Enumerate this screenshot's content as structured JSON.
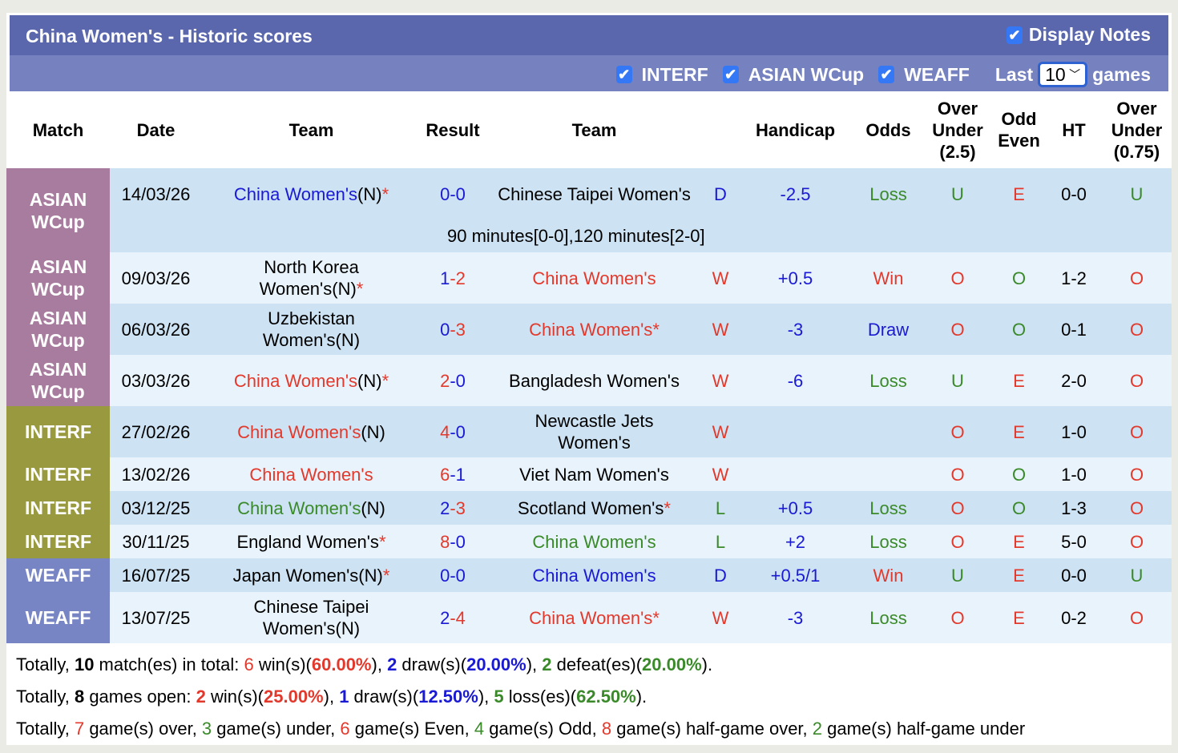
{
  "title": "China Women's - Historic scores",
  "display_notes": {
    "label": "Display Notes",
    "checked": true
  },
  "filters": [
    {
      "label": "INTERF",
      "checked": true
    },
    {
      "label": "ASIAN WCup",
      "checked": true
    },
    {
      "label": "WEAFF",
      "checked": true
    }
  ],
  "last": {
    "prefix": "Last",
    "value": "10",
    "suffix": "games"
  },
  "colors": {
    "red": "#e3392c",
    "blue": "#1a1ad4",
    "green": "#3a8a2a",
    "ASIAN WCup": "#a87c9e",
    "INTERF": "#999a40",
    "WEAFF": "#7885c4",
    "header": "#5a67ad"
  },
  "columns": [
    "Match",
    "Date",
    "Team",
    "Result",
    "Team",
    "",
    "Handicap",
    "Odds",
    "Over Under (2.5)",
    "Odd Even",
    "HT",
    "Over Under (0.75)"
  ],
  "rows": [
    {
      "match": "ASIAN WCup",
      "date": "14/03/26",
      "home": {
        "name": "China Women's",
        "color": "b",
        "suffix": "(N)",
        "star": true
      },
      "score": [
        [
          "0",
          "b"
        ],
        [
          "0",
          "b"
        ]
      ],
      "away": {
        "name": "Chinese Taipei Women's",
        "color": "k",
        "suffix": "",
        "star": false
      },
      "wdl": [
        "D",
        "b"
      ],
      "handicap": [
        "-2.5",
        "b"
      ],
      "odds": [
        "Loss",
        "g"
      ],
      "ou": [
        "U",
        "g"
      ],
      "oe": [
        "E",
        "r"
      ],
      "ht": "0-0",
      "ou075": [
        "U",
        "g"
      ],
      "note": "90 minutes[0-0],120 minutes[2-0]"
    },
    {
      "match": "ASIAN WCup",
      "date": "09/03/26",
      "home": {
        "name": "North Korea Women's",
        "color": "k",
        "suffix": "(N)",
        "star": true
      },
      "score": [
        [
          "1",
          "b"
        ],
        [
          "2",
          "r"
        ]
      ],
      "away": {
        "name": "China Women's",
        "color": "r",
        "suffix": "",
        "star": false
      },
      "wdl": [
        "W",
        "r"
      ],
      "handicap": [
        "+0.5",
        "b"
      ],
      "odds": [
        "Win",
        "r"
      ],
      "ou": [
        "O",
        "r"
      ],
      "oe": [
        "O",
        "g"
      ],
      "ht": "1-2",
      "ou075": [
        "O",
        "r"
      ]
    },
    {
      "match": "ASIAN WCup",
      "date": "06/03/26",
      "home": {
        "name": "Uzbekistan Women's",
        "color": "k",
        "suffix": "(N)",
        "star": false
      },
      "score": [
        [
          "0",
          "b"
        ],
        [
          "3",
          "r"
        ]
      ],
      "away": {
        "name": "China Women's",
        "color": "r",
        "suffix": "",
        "star": true
      },
      "wdl": [
        "W",
        "r"
      ],
      "handicap": [
        "-3",
        "b"
      ],
      "odds": [
        "Draw",
        "b"
      ],
      "ou": [
        "O",
        "r"
      ],
      "oe": [
        "O",
        "g"
      ],
      "ht": "0-1",
      "ou075": [
        "O",
        "r"
      ]
    },
    {
      "match": "ASIAN WCup",
      "date": "03/03/26",
      "home": {
        "name": "China Women's",
        "color": "r",
        "suffix": "(N)",
        "star": true
      },
      "score": [
        [
          "2",
          "r"
        ],
        [
          "0",
          "b"
        ]
      ],
      "away": {
        "name": "Bangladesh Women's",
        "color": "k",
        "suffix": "",
        "star": false
      },
      "wdl": [
        "W",
        "r"
      ],
      "handicap": [
        "-6",
        "b"
      ],
      "odds": [
        "Loss",
        "g"
      ],
      "ou": [
        "U",
        "g"
      ],
      "oe": [
        "E",
        "r"
      ],
      "ht": "2-0",
      "ou075": [
        "O",
        "r"
      ]
    },
    {
      "match": "INTERF",
      "date": "27/02/26",
      "home": {
        "name": "China Women's",
        "color": "r",
        "suffix": "(N)",
        "star": false
      },
      "score": [
        [
          "4",
          "r"
        ],
        [
          "0",
          "b"
        ]
      ],
      "away": {
        "name": "Newcastle Jets Women's",
        "color": "k",
        "suffix": "",
        "star": false
      },
      "wdl": [
        "W",
        "r"
      ],
      "handicap": [
        "",
        "b"
      ],
      "odds": [
        "",
        "g"
      ],
      "ou": [
        "O",
        "r"
      ],
      "oe": [
        "E",
        "r"
      ],
      "ht": "1-0",
      "ou075": [
        "O",
        "r"
      ]
    },
    {
      "match": "INTERF",
      "date": "13/02/26",
      "home": {
        "name": "China Women's",
        "color": "r",
        "suffix": "",
        "star": false
      },
      "score": [
        [
          "6",
          "r"
        ],
        [
          "1",
          "b"
        ]
      ],
      "away": {
        "name": "Viet Nam Women's",
        "color": "k",
        "suffix": "",
        "star": false
      },
      "wdl": [
        "W",
        "r"
      ],
      "handicap": [
        "",
        "b"
      ],
      "odds": [
        "",
        "g"
      ],
      "ou": [
        "O",
        "r"
      ],
      "oe": [
        "O",
        "g"
      ],
      "ht": "1-0",
      "ou075": [
        "O",
        "r"
      ]
    },
    {
      "match": "INTERF",
      "date": "03/12/25",
      "home": {
        "name": "China Women's",
        "color": "g",
        "suffix": "(N)",
        "star": false
      },
      "score": [
        [
          "2",
          "b"
        ],
        [
          "3",
          "r"
        ]
      ],
      "away": {
        "name": "Scotland Women's",
        "color": "k",
        "suffix": "",
        "star": true
      },
      "wdl": [
        "L",
        "g"
      ],
      "handicap": [
        "+0.5",
        "b"
      ],
      "odds": [
        "Loss",
        "g"
      ],
      "ou": [
        "O",
        "r"
      ],
      "oe": [
        "O",
        "g"
      ],
      "ht": "1-3",
      "ou075": [
        "O",
        "r"
      ]
    },
    {
      "match": "INTERF",
      "date": "30/11/25",
      "home": {
        "name": "England Women's",
        "color": "k",
        "suffix": "",
        "star": true
      },
      "score": [
        [
          "8",
          "r"
        ],
        [
          "0",
          "b"
        ]
      ],
      "away": {
        "name": "China Women's",
        "color": "g",
        "suffix": "",
        "star": false
      },
      "wdl": [
        "L",
        "g"
      ],
      "handicap": [
        "+2",
        "b"
      ],
      "odds": [
        "Loss",
        "g"
      ],
      "ou": [
        "O",
        "r"
      ],
      "oe": [
        "E",
        "r"
      ],
      "ht": "5-0",
      "ou075": [
        "O",
        "r"
      ]
    },
    {
      "match": "WEAFF",
      "date": "16/07/25",
      "home": {
        "name": "Japan Women's",
        "color": "k",
        "suffix": "(N)",
        "star": true
      },
      "score": [
        [
          "0",
          "b"
        ],
        [
          "0",
          "b"
        ]
      ],
      "away": {
        "name": "China Women's",
        "color": "b",
        "suffix": "",
        "star": false
      },
      "wdl": [
        "D",
        "b"
      ],
      "handicap": [
        "+0.5/1",
        "b"
      ],
      "odds": [
        "Win",
        "r"
      ],
      "ou": [
        "U",
        "g"
      ],
      "oe": [
        "E",
        "r"
      ],
      "ht": "0-0",
      "ou075": [
        "U",
        "g"
      ]
    },
    {
      "match": "WEAFF",
      "date": "13/07/25",
      "home": {
        "name": "Chinese Taipei Women's",
        "color": "k",
        "suffix": "(N)",
        "star": false
      },
      "score": [
        [
          "2",
          "b"
        ],
        [
          "4",
          "r"
        ]
      ],
      "away": {
        "name": "China Women's",
        "color": "r",
        "suffix": "",
        "star": true
      },
      "wdl": [
        "W",
        "r"
      ],
      "handicap": [
        "-3",
        "b"
      ],
      "odds": [
        "Loss",
        "g"
      ],
      "ou": [
        "O",
        "r"
      ],
      "oe": [
        "E",
        "r"
      ],
      "ht": "0-2",
      "ou075": [
        "O",
        "r"
      ]
    }
  ],
  "summary": [
    [
      [
        "Totally, ",
        "k",
        0
      ],
      [
        "10",
        "k",
        1
      ],
      [
        " match(es) in total: ",
        "k",
        0
      ],
      [
        "6",
        "r",
        0
      ],
      [
        " win(s)(",
        "k",
        0
      ],
      [
        "60.00%",
        "r",
        1
      ],
      [
        "), ",
        "k",
        0
      ],
      [
        "2",
        "b",
        1
      ],
      [
        " draw(s)(",
        "k",
        0
      ],
      [
        "20.00%",
        "b",
        1
      ],
      [
        "), ",
        "k",
        0
      ],
      [
        "2",
        "g",
        1
      ],
      [
        " defeat(es)(",
        "k",
        0
      ],
      [
        "20.00%",
        "g",
        1
      ],
      [
        ").",
        "k",
        0
      ]
    ],
    [
      [
        "Totally, ",
        "k",
        0
      ],
      [
        "8",
        "k",
        1
      ],
      [
        " games open: ",
        "k",
        0
      ],
      [
        "2",
        "r",
        1
      ],
      [
        " win(s)(",
        "k",
        0
      ],
      [
        "25.00%",
        "r",
        1
      ],
      [
        "), ",
        "k",
        0
      ],
      [
        "1",
        "b",
        1
      ],
      [
        " draw(s)(",
        "k",
        0
      ],
      [
        "12.50%",
        "b",
        1
      ],
      [
        "), ",
        "k",
        0
      ],
      [
        "5",
        "g",
        1
      ],
      [
        " loss(es)(",
        "k",
        0
      ],
      [
        "62.50%",
        "g",
        1
      ],
      [
        ").",
        "k",
        0
      ]
    ],
    [
      [
        "Totally, ",
        "k",
        0
      ],
      [
        "7",
        "r",
        0
      ],
      [
        " game(s) over, ",
        "k",
        0
      ],
      [
        "3",
        "g",
        0
      ],
      [
        " game(s) under, ",
        "k",
        0
      ],
      [
        "6",
        "r",
        0
      ],
      [
        " game(s) Even, ",
        "k",
        0
      ],
      [
        "4",
        "g",
        0
      ],
      [
        " game(s) Odd, ",
        "k",
        0
      ],
      [
        "8",
        "r",
        0
      ],
      [
        " game(s) half-game over, ",
        "k",
        0
      ],
      [
        "2",
        "g",
        0
      ],
      [
        " game(s) half-game under",
        "k",
        0
      ]
    ]
  ]
}
